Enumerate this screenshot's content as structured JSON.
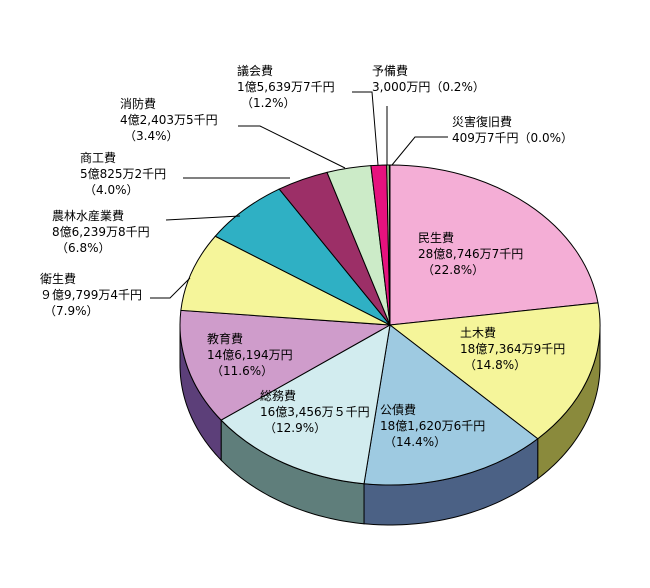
{
  "chart_data": {
    "type": "pie",
    "title": "",
    "slices": [
      {
        "name": "民生費",
        "amount": "28億8,746万7千円",
        "pct_label": "（22.8%）",
        "value": 22.8,
        "top": "#f4aed6",
        "side": "#a3517f"
      },
      {
        "name": "土木費",
        "amount": "18億7,364万9千円",
        "pct_label": "（14.8%）",
        "value": 14.8,
        "top": "#f5f59a",
        "side": "#8a8a3c"
      },
      {
        "name": "公債費",
        "amount": "18億1,620万6千円",
        "pct_label": "（14.4%）",
        "value": 14.4,
        "top": "#9ecae1",
        "side": "#4b6185"
      },
      {
        "name": "総務費",
        "amount": "16億3,456万５千円",
        "pct_label": "（12.9%）",
        "value": 12.9,
        "top": "#d2ecef",
        "side": "#5f7e7b"
      },
      {
        "name": "教育費",
        "amount": "14億6,194万円",
        "pct_label": "（11.6%）",
        "value": 11.6,
        "top": "#cf9ccb",
        "side": "#5c3f79"
      },
      {
        "name": "衛生費",
        "amount": "９億9,799万4千円",
        "pct_label": "（7.9%）",
        "value": 7.9,
        "top": "#f5f59a",
        "side": "#8a8a3c"
      },
      {
        "name": "農林水産業費",
        "amount": "8億6,239万8千円",
        "pct_label": "（6.8%）",
        "value": 6.8,
        "top": "#2fb0c4",
        "side": "#1e6f7a"
      },
      {
        "name": "商工費",
        "amount": "5億825万2千円",
        "pct_label": "（4.0%）",
        "value": 4.0,
        "top": "#9c2f67",
        "side": "#5a1a3b"
      },
      {
        "name": "消防費",
        "amount": "4億2,403万5千円",
        "pct_label": "（3.4%）",
        "value": 3.4,
        "top": "#ccebc8",
        "side": "#6f8c6b"
      },
      {
        "name": "議会費",
        "amount": "1億5,639万7千円",
        "pct_label": "（1.2%）",
        "value": 1.2,
        "top": "#e6127e",
        "side": "#8a0b4b"
      },
      {
        "name": "予備費",
        "amount": "3,000万円（0.2%）",
        "pct_label": "",
        "value": 0.2,
        "top": "#b0de9c",
        "side": "#5f7a52"
      },
      {
        "name": "災害復旧費",
        "amount": "409万7千円（0.0%）",
        "pct_label": "",
        "value": 0.05,
        "top": "#ffffff",
        "side": "#999999"
      }
    ]
  }
}
